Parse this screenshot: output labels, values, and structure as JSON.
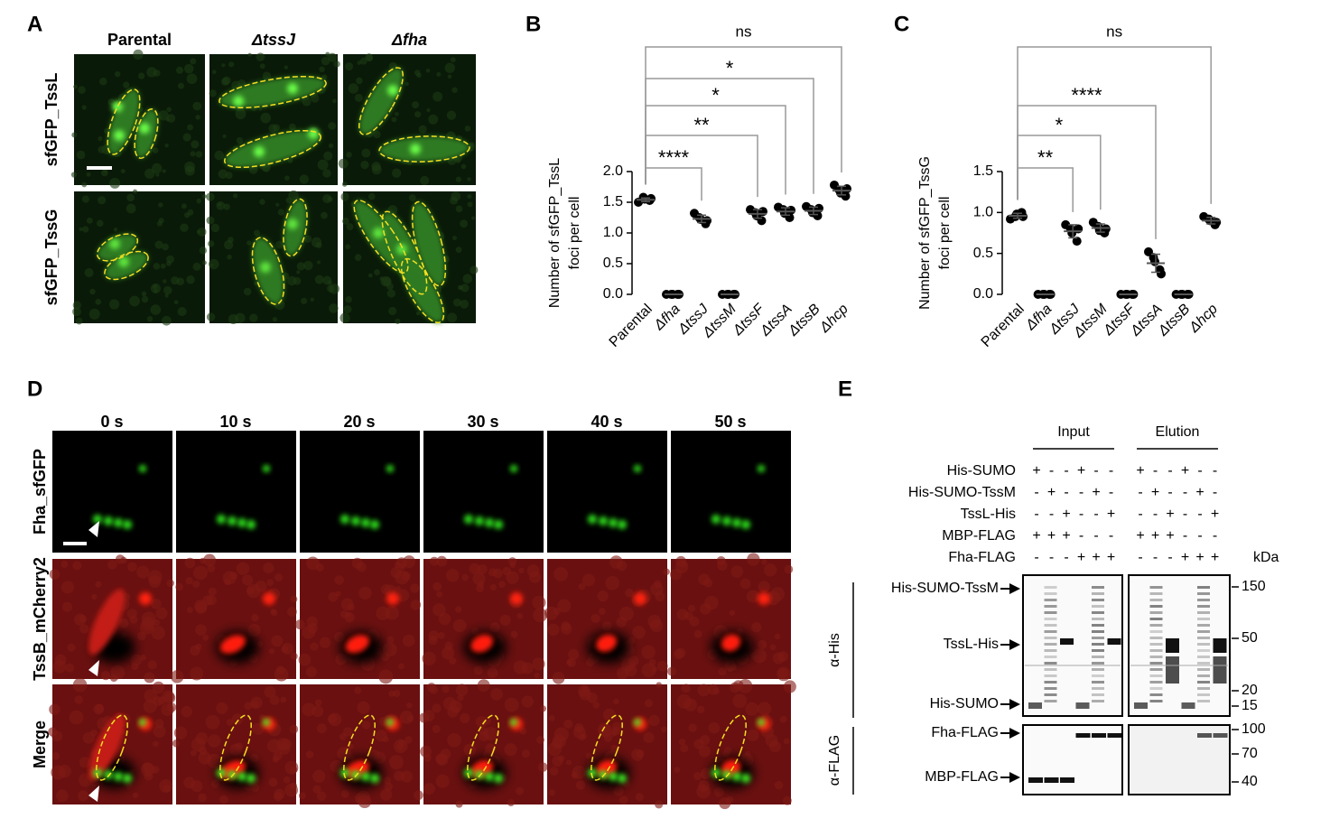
{
  "panel_labels": [
    "A",
    "B",
    "C",
    "D",
    "E"
  ],
  "panel_a": {
    "columns": [
      "Parental",
      "ΔtssJ",
      "Δfha"
    ],
    "rows": [
      "sfGFP_TssL",
      "sfGFP_TssG"
    ]
  },
  "chart_data": [
    {
      "type": "dot",
      "y_label": [
        "Number of sfGFP_TssL",
        "foci per cell"
      ],
      "categories": [
        "Parental",
        "Δfha",
        "ΔtssJ",
        "ΔtssM",
        "ΔtssF",
        "ΔtssA",
        "ΔtssB",
        "Δhcp"
      ],
      "values": [
        [
          1.5,
          1.58,
          1.55,
          1.53,
          1.56
        ],
        [
          0,
          0,
          0,
          0,
          0
        ],
        [
          1.32,
          1.25,
          1.22,
          1.15,
          1.2
        ],
        [
          0,
          0,
          0,
          0,
          0
        ],
        [
          1.38,
          1.33,
          1.28,
          1.2,
          1.35
        ],
        [
          1.42,
          1.38,
          1.32,
          1.25,
          1.37
        ],
        [
          1.43,
          1.38,
          1.33,
          1.28,
          1.4
        ],
        [
          1.78,
          1.7,
          1.65,
          1.6,
          1.72
        ]
      ],
      "means": [
        1.54,
        0,
        1.23,
        0,
        1.31,
        1.35,
        1.36,
        1.69
      ],
      "sds": [
        0.03,
        0,
        0.06,
        0,
        0.07,
        0.06,
        0.06,
        0.07
      ],
      "color": "#000000",
      "ylim": [
        0,
        2
      ],
      "yticks": [
        {
          "value": 0,
          "label": "0.0"
        },
        {
          "value": 0.5,
          "label": "0.5"
        },
        {
          "value": 1,
          "label": "1.0"
        },
        {
          "value": 1.5,
          "label": "1.5"
        },
        {
          "value": 2,
          "label": "2.0"
        }
      ],
      "comparisons": [
        {
          "from": 0,
          "to": 7,
          "label": "ns"
        },
        {
          "from": 0,
          "to": 6,
          "label": "*"
        },
        {
          "from": 0,
          "to": 5,
          "label": "*"
        },
        {
          "from": 0,
          "to": 4,
          "label": "**"
        },
        {
          "from": 0,
          "to": 2,
          "label": "****"
        }
      ]
    },
    {
      "type": "dot",
      "y_label": [
        "Number of sfGFP_TssG",
        "foci per cell"
      ],
      "categories": [
        "Parental",
        "Δfha",
        "ΔtssJ",
        "ΔtssM",
        "ΔtssF",
        "ΔtssA",
        "ΔtssB",
        "Δhcp"
      ],
      "values": [
        [
          0.92,
          0.95,
          0.98,
          1.0,
          0.95
        ],
        [
          0,
          0,
          0,
          0,
          0
        ],
        [
          0.85,
          0.8,
          0.75,
          0.65,
          0.8
        ],
        [
          0.88,
          0.83,
          0.78,
          0.75,
          0.8
        ],
        [
          0,
          0,
          0,
          0,
          0
        ],
        [
          0.52,
          0.45,
          0.4,
          0.3,
          0.25
        ],
        [
          0,
          0,
          0,
          0,
          0
        ],
        [
          0.95,
          0.92,
          0.9,
          0.85,
          0.88
        ]
      ],
      "means": [
        0.96,
        0,
        0.77,
        0.81,
        0,
        0.38,
        0,
        0.9
      ],
      "sds": [
        0.03,
        0,
        0.08,
        0.05,
        0,
        0.11,
        0,
        0.04
      ],
      "color": "#000000",
      "ylim": [
        0,
        1.5
      ],
      "yticks": [
        {
          "value": 0,
          "label": "0.0"
        },
        {
          "value": 0.5,
          "label": "0.5"
        },
        {
          "value": 1,
          "label": "1.0"
        },
        {
          "value": 1.5,
          "label": "1.5"
        }
      ],
      "comparisons": [
        {
          "from": 0,
          "to": 7,
          "label": "ns"
        },
        {
          "from": 0,
          "to": 5,
          "label": "****"
        },
        {
          "from": 0,
          "to": 3,
          "label": "*"
        },
        {
          "from": 0,
          "to": 2,
          "label": "**"
        }
      ]
    }
  ],
  "panel_d": {
    "times": [
      "0 s",
      "10 s",
      "20 s",
      "30 s",
      "40 s",
      "50 s"
    ],
    "rows": [
      "Fha_sfGFP",
      "TssB_mCherry2",
      "Merge"
    ]
  },
  "panel_e": {
    "groups": [
      "Input",
      "Elution"
    ],
    "conditions": [
      {
        "name": "His-SUMO",
        "input": [
          "+",
          "-",
          "-",
          "+",
          "-",
          "-"
        ],
        "elution": [
          "+",
          "-",
          "-",
          "+",
          "-",
          "-"
        ]
      },
      {
        "name": "His-SUMO-TssM",
        "input": [
          "-",
          "+",
          "-",
          "-",
          "+",
          "-"
        ],
        "elution": [
          "-",
          "+",
          "-",
          "-",
          "+",
          "-"
        ]
      },
      {
        "name": "TssL-His",
        "input": [
          "-",
          "-",
          "+",
          "-",
          "-",
          "+"
        ],
        "elution": [
          "-",
          "-",
          "+",
          "-",
          "-",
          "+"
        ]
      },
      {
        "name": "MBP-FLAG",
        "input": [
          "+",
          "+",
          "+",
          "-",
          "-",
          "-"
        ],
        "elution": [
          "+",
          "+",
          "+",
          "-",
          "-",
          "-"
        ]
      },
      {
        "name": "Fha-FLAG",
        "input": [
          "-",
          "-",
          "-",
          "+",
          "+",
          "+"
        ],
        "elution": [
          "-",
          "-",
          "-",
          "+",
          "+",
          "+"
        ]
      }
    ],
    "unit": "kDa",
    "antibodies": [
      "α-His",
      "α-FLAG"
    ],
    "bands": [
      "His-SUMO-TssM",
      "TssL-His",
      "His-SUMO",
      "Fha-FLAG",
      "MBP-FLAG"
    ],
    "markers": [
      150,
      50,
      20,
      15,
      100,
      70,
      40
    ]
  }
}
